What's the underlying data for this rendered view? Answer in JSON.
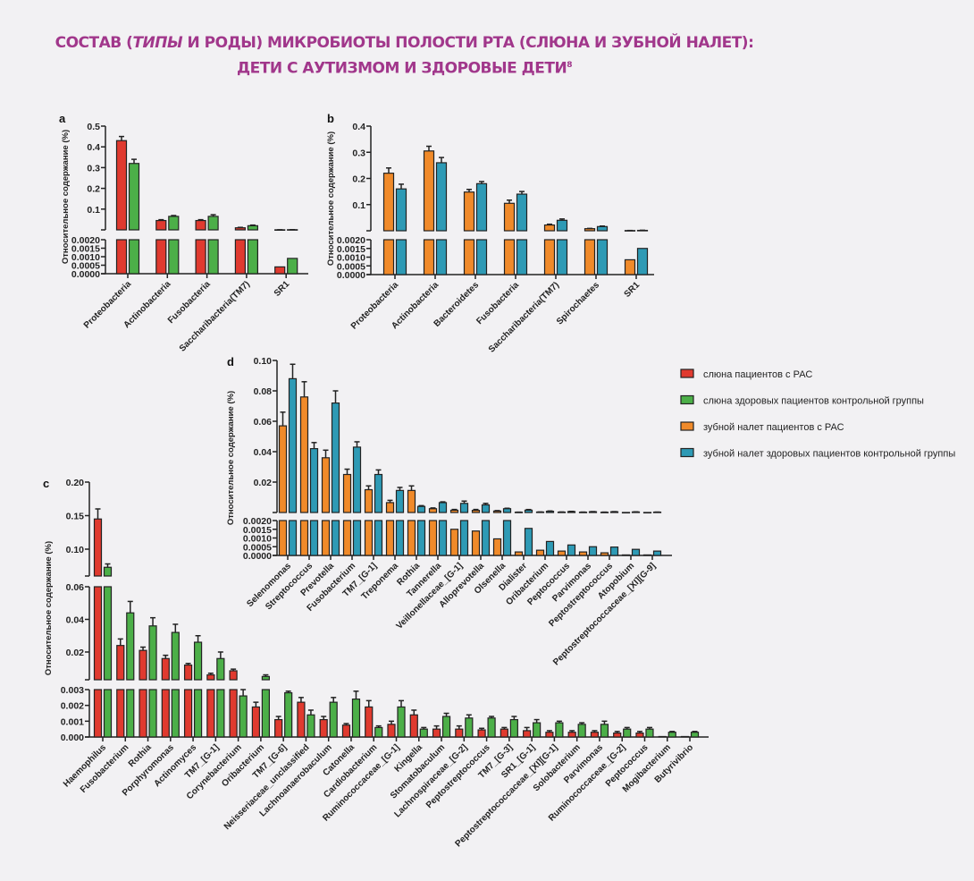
{
  "title": {
    "line1_a": "СОСТАВ (",
    "line1_italic": "ТИПЫ",
    "line1_b": " И РОДЫ) МИКРОБИОТЫ ПОЛОСТИ РТА (СЛЮНА И ЗУБНОЙ НАЛЕТ):",
    "line2": "ДЕТИ С АУТИЗМОМ И ЗДОРОВЫЕ ДЕТИ",
    "footnote": "8"
  },
  "legend": [
    {
      "label": "слюна пациентов с РАС",
      "color": "#e03a2f"
    },
    {
      "label": "слюна здоровых пациентов контрольной группы",
      "color": "#4caf48"
    },
    {
      "label": "зубной налет пациентов с РАС",
      "color": "#f08a2a"
    },
    {
      "label": "зубной налет здоровых пациентов контрольной группы",
      "color": "#2e9ab5"
    }
  ],
  "chart_data": [
    {
      "panel": "a",
      "type": "bar",
      "ylabel": "Относительное содержание (%)",
      "y_axis_segments": [
        {
          "range": [
            0,
            0.002
          ],
          "ticks": [
            "0.0000",
            "0.0005",
            "0.0010",
            "0.0015",
            "0.0020"
          ]
        },
        {
          "range": [
            0,
            0.5
          ],
          "ticks": [
            "0.1",
            "0.2",
            "0.3",
            "0.4",
            "0.5"
          ]
        }
      ],
      "categories": [
        "Proteobacteria",
        "Actinobacteria",
        "Fusobacteria",
        "Saccharibacteria(TM7)",
        "SR1"
      ],
      "series": [
        {
          "legend_index": 0,
          "values": [
            0.43,
            0.045,
            0.045,
            0.01,
            0.0004
          ],
          "errors": [
            0.02,
            0.004,
            0.004,
            0.002,
            0.0001
          ]
        },
        {
          "legend_index": 1,
          "values": [
            0.32,
            0.065,
            0.065,
            0.02,
            0.0009
          ],
          "errors": [
            0.02,
            0.004,
            0.008,
            0.003,
            0.0002
          ]
        }
      ]
    },
    {
      "panel": "b",
      "type": "bar",
      "ylabel": "Относительное содержание (%)",
      "y_axis_segments": [
        {
          "range": [
            0,
            0.002
          ],
          "ticks": [
            "0.0000",
            "0.0005",
            "0.0010",
            "0.0015",
            "0.0020"
          ]
        },
        {
          "range": [
            0,
            0.4
          ],
          "ticks": [
            "0.1",
            "0.2",
            "0.3",
            "0.4"
          ]
        }
      ],
      "categories": [
        "Proteobacteria",
        "Actinobacteria",
        "Bacteroidetes",
        "Fusobacteria",
        "Saccharibacteria(TM7)",
        "Spirochaetes",
        "SR1"
      ],
      "series": [
        {
          "legend_index": 2,
          "values": [
            0.22,
            0.305,
            0.148,
            0.105,
            0.022,
            0.008,
            0.00085
          ],
          "errors": [
            0.02,
            0.018,
            0.01,
            0.012,
            0.003,
            0.001,
            0.0002
          ]
        },
        {
          "legend_index": 3,
          "values": [
            0.16,
            0.26,
            0.18,
            0.14,
            0.04,
            0.016,
            0.0015
          ],
          "errors": [
            0.018,
            0.02,
            0.008,
            0.01,
            0.005,
            0.002,
            0.00045
          ]
        }
      ]
    },
    {
      "panel": "d",
      "type": "bar",
      "ylabel": "Относительное содержание (%)",
      "y_axis_segments": [
        {
          "range": [
            0,
            0.002
          ],
          "ticks": [
            "0.0000",
            "0.0005",
            "0.0010",
            "0.0015",
            "0.0020"
          ]
        },
        {
          "range": [
            0,
            0.1
          ],
          "ticks": [
            "0.02",
            "0.04",
            "0.06",
            "0.08",
            "0.10"
          ]
        }
      ],
      "categories": [
        "Selenomonas",
        "Streptococcus",
        "Prevotella",
        "Fusobacterium",
        "TM7_[G-1]",
        "Treponema",
        "Rothia",
        "Tannerella",
        "Veillonellaceae_[G-1]",
        "Alloprevotella",
        "Olsenella",
        "Dialister",
        "Oribacterium",
        "Peptococcus",
        "Parvimonas",
        "Peptostreptococcus",
        "Atopobium",
        "Peptostreptococcaceae_[XI][G-9]"
      ],
      "series": [
        {
          "legend_index": 2,
          "values": [
            0.057,
            0.076,
            0.036,
            0.025,
            0.015,
            0.0065,
            0.0145,
            0.0025,
            0.0015,
            0.0014,
            0.00095,
            0.0002,
            0.0003,
            0.00025,
            0.0002,
            0.00015,
            3e-05,
            3e-05
          ],
          "errors": [
            0.009,
            0.01,
            0.005,
            0.0035,
            0.0025,
            0.0015,
            0.003,
            0.0005,
            0.0005,
            0.0006,
            0.0003,
            3e-05,
            5e-05,
            0.0001,
            8e-05,
            0.0001,
            0,
            0
          ]
        },
        {
          "legend_index": 3,
          "values": [
            0.088,
            0.042,
            0.072,
            0.043,
            0.025,
            0.0145,
            0.004,
            0.0065,
            0.006,
            0.005,
            0.0025,
            0.00155,
            0.0008,
            0.0006,
            0.0005,
            0.00048,
            0.00035,
            0.00025
          ],
          "errors": [
            0.0095,
            0.004,
            0.008,
            0.0035,
            0.003,
            0.002,
            0.0005,
            0.0005,
            0.0015,
            0.001,
            0.0003,
            0.0004,
            0.0002,
            0.00015,
            0.0001,
            0.0001,
            0.0001,
            3e-05
          ]
        }
      ]
    },
    {
      "panel": "c",
      "type": "bar",
      "ylabel": "Относительное содержание (%)",
      "y_axis_segments": [
        {
          "range": [
            0,
            0.003
          ],
          "ticks": [
            "0.000",
            "0.001",
            "0.002",
            "0.003"
          ]
        },
        {
          "range": [
            0.003,
            0.06
          ],
          "ticks": [
            "0.02",
            "0.04",
            "0.06"
          ]
        },
        {
          "range": [
            0.06,
            0.2
          ],
          "ticks": [
            "0.10",
            "0.15",
            "0.20"
          ]
        }
      ],
      "categories": [
        "Haemophilus",
        "Fusobacterium",
        "Rothia",
        "Porphyromonas",
        "Actinomyces",
        "TM7_[G-1]",
        "Corynebacterium",
        "Oribacterium",
        "TM7_[G-6]",
        "Neisseriaceae_unclassified",
        "Lachnoanaerobaculum",
        "Catonella",
        "Cardiobacterium",
        "Ruminococcaceae_[G-1]",
        "Kingella",
        "Stomatobaculum",
        "Lachnospiraceae_[G-2]",
        "Peptostreptococcus",
        "TM7_[G-3]",
        "SR1_[G-1]",
        "Peptostreptococcaceae_[XI][G-1]",
        "Solobacterium",
        "Parvimonas",
        "Ruminococcaceae_[G-2]",
        "Peptococcus",
        "Mogibacterium",
        "Butyrivibrio"
      ],
      "series": [
        {
          "legend_index": 0,
          "values": [
            0.145,
            0.024,
            0.021,
            0.016,
            0.012,
            0.006,
            0.0085,
            0.0019,
            0.0011,
            0.0022,
            0.0011,
            0.00075,
            0.0019,
            0.0008,
            0.0014,
            0.0005,
            0.0005,
            0.00045,
            0.0005,
            0.0004,
            0.0003,
            0.0003,
            0.0003,
            0.00025,
            0.00025,
            3e-05,
            3e-05
          ],
          "errors": [
            0.015,
            0.004,
            0.002,
            0.002,
            0.001,
            0.001,
            0.001,
            0.0003,
            0.0002,
            0.0003,
            0.0002,
            0.0001,
            0.0004,
            0.0002,
            0.0003,
            0.0002,
            0.0002,
            0.0001,
            0.0001,
            0.0002,
            0.0001,
            0.0001,
            0.0001,
            0.0001,
            0.0001,
            0,
            0
          ]
        },
        {
          "legend_index": 1,
          "values": [
            0.073,
            0.044,
            0.036,
            0.032,
            0.026,
            0.016,
            0.0026,
            0.005,
            0.0028,
            0.0014,
            0.0022,
            0.0024,
            0.0006,
            0.0019,
            0.0005,
            0.0013,
            0.0012,
            0.0012,
            0.0011,
            0.0009,
            0.0009,
            0.0008,
            0.0008,
            0.0005,
            0.0005,
            0.0003,
            0.0003
          ],
          "errors": [
            0.005,
            0.007,
            0.005,
            0.005,
            0.004,
            0.004,
            0.0004,
            0.001,
            0.0001,
            0.0003,
            0.0003,
            0.0005,
            0.0001,
            0.0004,
            0.0001,
            0.0002,
            0.0002,
            0.0001,
            0.0002,
            0.0002,
            0.0001,
            0.0001,
            0.0002,
            0.0001,
            0.0001,
            5e-05,
            5e-05
          ]
        }
      ]
    }
  ]
}
